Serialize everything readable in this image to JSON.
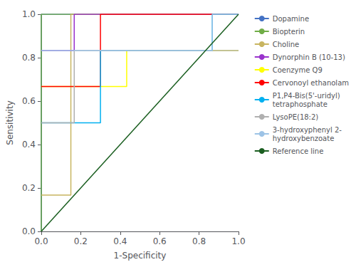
{
  "chart_data": {
    "type": "line",
    "xlabel": "1-Specificity",
    "ylabel": "Sensitivity",
    "xlim": [
      0.0,
      1.0
    ],
    "ylim": [
      0.0,
      1.0
    ],
    "xticks": [
      {
        "value": 0.0,
        "label": "0.0"
      },
      0.2,
      0.4,
      0.6,
      0.8,
      {
        "value": 1.0,
        "label": "1.0"
      }
    ],
    "yticks": [
      {
        "value": 0.0,
        "label": "0.0"
      },
      0.2,
      0.4,
      0.6,
      0.8,
      {
        "value": 1.0,
        "label": "1.0"
      }
    ],
    "grid": false,
    "legend": "right",
    "series": [
      {
        "name": "Dopamine",
        "color": "#4472c4",
        "x": [
          0.0,
          0.0,
          1.0
        ],
        "values": [
          0.0,
          1.0,
          1.0
        ]
      },
      {
        "name": "Biopterin",
        "color": "#70ad47",
        "x": [
          0.0,
          0.0,
          1.0
        ],
        "values": [
          0.0,
          1.0,
          1.0
        ]
      },
      {
        "name": "Choline",
        "color": "#c8b560",
        "x": [
          0.0,
          0.15,
          0.15,
          1.0
        ],
        "values": [
          0.167,
          0.167,
          1.0,
          1.0
        ]
      },
      {
        "name": "Dynorphin B (10-13)",
        "color": "#9933cc",
        "x": [
          0.0,
          0.167,
          0.167,
          1.0
        ],
        "values": [
          0.833,
          0.833,
          1.0,
          1.0
        ]
      },
      {
        "name": "Coenzyme Q9",
        "color": "#ffff00",
        "x": [
          0.0,
          0.433,
          0.433,
          1.0
        ],
        "values": [
          0.667,
          0.667,
          0.833,
          0.833
        ]
      },
      {
        "name": "Cervonoyl ethanolam",
        "color": "#ff0000",
        "x": [
          0.0,
          0.3,
          0.3,
          1.0
        ],
        "values": [
          0.667,
          0.667,
          1.0,
          1.0
        ]
      },
      {
        "name": "P1,P4-Bis(5'-uridyl)\ntetraphosphate",
        "color": "#00b0f0",
        "x": [
          0.0,
          0.3,
          0.3,
          0.867,
          0.867,
          1.0
        ],
        "values": [
          0.5,
          0.5,
          0.833,
          0.833,
          1.0,
          1.0
        ]
      },
      {
        "name": "LysoPE(18:2)",
        "color": "#b0b0b0",
        "x": [
          0.0,
          0.167,
          0.167,
          1.0
        ],
        "values": [
          0.5,
          0.5,
          0.833,
          0.833
        ]
      },
      {
        "name": "3-hydroxyphenyl 2-\nhydroxybenzoate",
        "color": "#9dc3e6",
        "x": [
          0.0,
          0.867,
          0.867,
          1.0
        ],
        "values": [
          0.833,
          0.833,
          1.0,
          1.0
        ]
      },
      {
        "name": "Reference line",
        "color": "#1a5e20",
        "x": [
          0.0,
          1.0
        ],
        "values": [
          0.0,
          1.0
        ]
      }
    ]
  }
}
